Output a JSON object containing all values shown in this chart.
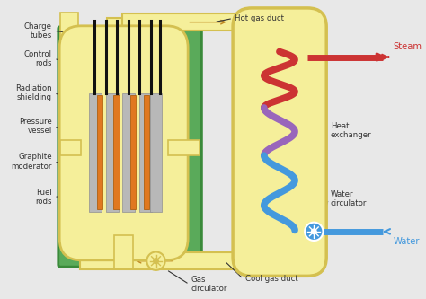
{
  "colors": {
    "bg": "#e8e8e8",
    "green": "#5aaa5a",
    "green_dark": "#3a8a3a",
    "yellow_fill": "#f5ef9a",
    "yellow_border": "#d4c050",
    "gray_mod": "#b8b8b8",
    "gray_mod_border": "#909090",
    "orange_fuel": "#e07820",
    "black_rod": "#111111",
    "red_coil": "#cc3333",
    "purple_coil": "#9966bb",
    "blue_coil": "#4499dd",
    "arrow_gold": "#c08820",
    "steam_red": "#cc3333",
    "water_blue": "#4499dd"
  },
  "labels": {
    "charge_tubes": "Charge\ntubes",
    "control_rods": "Control\nrods",
    "radiation_shielding": "Radiation\nshielding",
    "pressure_vessel": "Pressure\nvessel",
    "graphite_moderator": "Graphite\nmoderator",
    "fuel_rods": "Fuel\nrods",
    "hot_gas_duct": "Hot gas duct",
    "steam": "Steam",
    "heat_exchanger": "Heat\nexchanger",
    "water_circulator": "Water\ncirculator",
    "cool_gas_duct": "Cool gas duct",
    "gas_circulator": "Gas\ncirculator",
    "water": "Water"
  }
}
